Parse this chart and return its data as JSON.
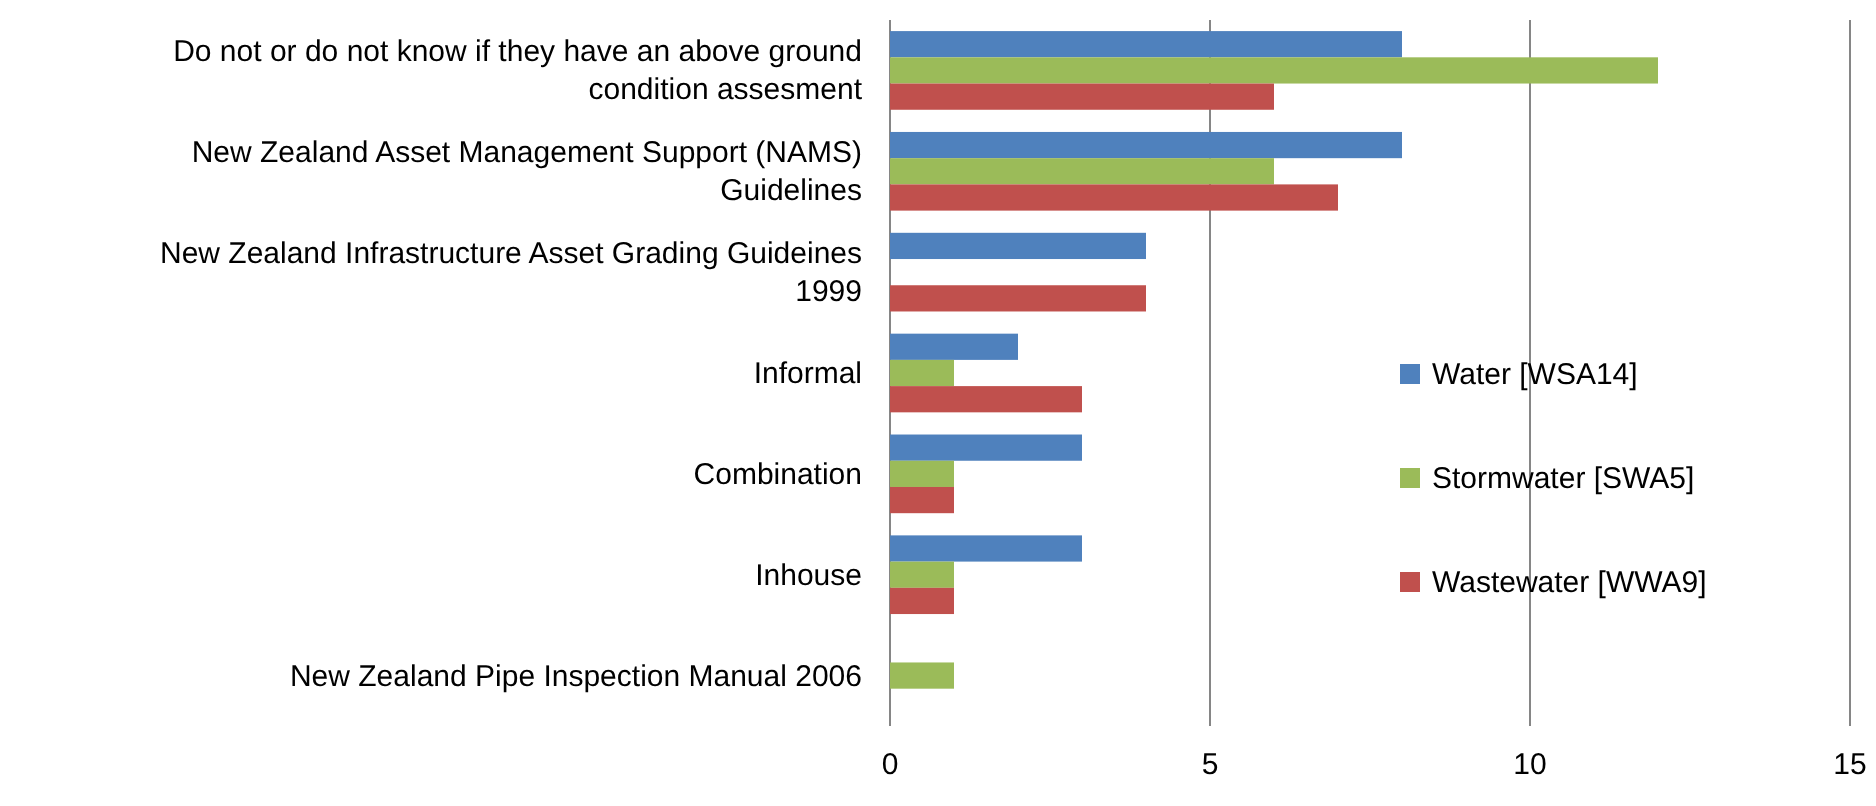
{
  "chart_data": {
    "type": "bar",
    "orientation": "horizontal",
    "categories": [
      "Do not or do not know if they have an above ground condition assesment",
      "New Zealand Asset Management Support (NAMS) Guidelines",
      "New Zealand Infrastructure Asset Grading Guideines 1999",
      "Informal",
      "Combination",
      "Inhouse",
      "New Zealand Pipe Inspection Manual 2006"
    ],
    "series": [
      {
        "name": "Water [WSA14]",
        "color": "#4f81bd",
        "values": [
          8,
          8,
          4,
          2,
          3,
          3,
          0
        ]
      },
      {
        "name": "Stormwater [SWA5]",
        "color": "#9bbb59",
        "values": [
          12,
          6,
          0,
          1,
          1,
          1,
          1
        ]
      },
      {
        "name": "Wastewater [WWA9]",
        "color": "#c0504d",
        "values": [
          6,
          7,
          4,
          3,
          1,
          1,
          0
        ]
      }
    ],
    "xlim": [
      0,
      15
    ],
    "xticks": [
      0,
      5,
      10,
      15
    ],
    "grid": "x",
    "legend": "right"
  }
}
